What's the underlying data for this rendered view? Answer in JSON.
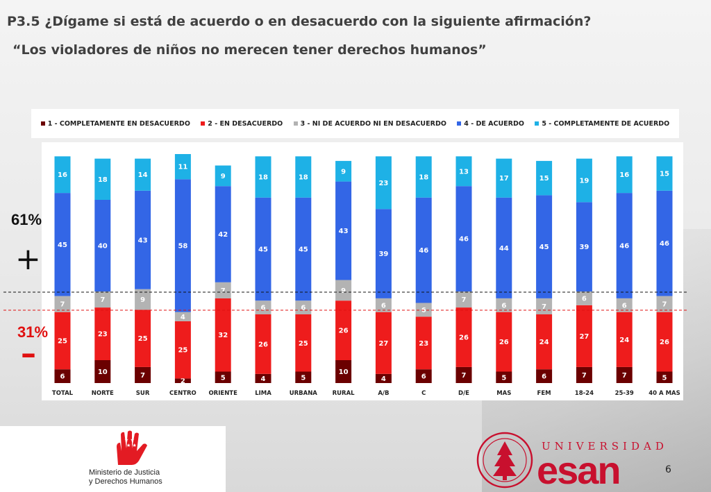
{
  "slide": {
    "question": "P3.5 ¿Dígame si está de acuerdo o en desacuerdo con la siguiente afirmación?",
    "statement": "“Los violadores de niños no merecen tener derechos humanos”",
    "pct_top": "61%",
    "pct_bottom": "31%",
    "plus_sign": "+",
    "minus_sign": "–",
    "page_number": "6",
    "logo_left_line1": "Ministerio de Justicia",
    "logo_left_line2": "y Derechos Humanos",
    "logo_right_top": "UNIVERSIDAD",
    "logo_right_word": "esan"
  },
  "colors": {
    "s1": "#6b0000",
    "s2": "#ee1c1c",
    "s3": "#b3b3b3",
    "s4": "#3366e6",
    "s5": "#1eb1e6",
    "brand_red": "#c8102e"
  },
  "chart_data": {
    "type": "bar",
    "stacked": true,
    "legend_position": "top",
    "categories": [
      "TOTAL",
      "NORTE",
      "SUR",
      "CENTRO",
      "ORIENTE",
      "LIMA",
      "URBANA",
      "RURAL",
      "A/B",
      "C",
      "D/E",
      "MAS",
      "FEM",
      "18-24",
      "25-39",
      "40 A MAS"
    ],
    "series": [
      {
        "name": "1 - COMPLETAMENTE EN DESACUERDO",
        "values": [
          6,
          10,
          7,
          2,
          5,
          4,
          5,
          10,
          4,
          6,
          7,
          5,
          6,
          7,
          7,
          5
        ]
      },
      {
        "name": "2 - EN DESACUERDO",
        "values": [
          25,
          23,
          25,
          25,
          32,
          26,
          25,
          26,
          27,
          23,
          26,
          26,
          24,
          27,
          24,
          26
        ]
      },
      {
        "name": "3 - NI DE ACUERDO NI EN DESACUERDO",
        "values": [
          7,
          7,
          9,
          4,
          7,
          6,
          6,
          9,
          6,
          6,
          7,
          6,
          7,
          6,
          6,
          7
        ]
      },
      {
        "name": "4 - DE ACUERDO",
        "values": [
          45,
          40,
          43,
          58,
          42,
          45,
          45,
          43,
          39,
          46,
          46,
          44,
          45,
          39,
          46,
          46
        ]
      },
      {
        "name": "5 - COMPLETAMENTE DE ACUERDO",
        "values": [
          16,
          18,
          14,
          11,
          9,
          18,
          18,
          9,
          23,
          18,
          13,
          17,
          15,
          19,
          16,
          15
        ]
      }
    ]
  }
}
